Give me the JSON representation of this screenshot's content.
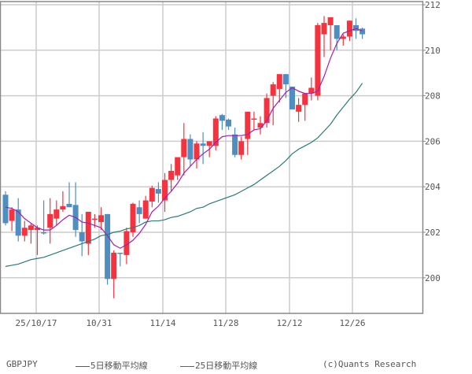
{
  "chart_data": {
    "type": "candlestick",
    "title": "GBPJPY",
    "symbol": "GBPJPY",
    "ylim": [
      198.5,
      212.2
    ],
    "yticks": [
      200,
      202,
      204,
      206,
      208,
      210,
      212
    ],
    "xtick_labels": [
      "25/10/17",
      "10/31",
      "11/14",
      "11/28",
      "12/12",
      "12/26"
    ],
    "grid": true,
    "up_color": "#f5333f",
    "down_color": "#4f8ec0",
    "ma5_color": "#a020b0",
    "ma25_color": "#2a7a78",
    "candles": [
      {
        "o": 203.65,
        "h": 203.8,
        "l": 202.3,
        "c": 202.4
      },
      {
        "o": 202.5,
        "h": 203.1,
        "l": 202.05,
        "c": 203.0
      },
      {
        "o": 203.0,
        "h": 203.5,
        "l": 201.6,
        "c": 201.85
      },
      {
        "o": 201.85,
        "h": 202.5,
        "l": 201.6,
        "c": 202.2
      },
      {
        "o": 202.1,
        "h": 202.4,
        "l": 201.5,
        "c": 202.3
      },
      {
        "o": 202.1,
        "h": 202.3,
        "l": 201.0,
        "c": 202.2
      },
      {
        "o": 202.0,
        "h": 203.4,
        "l": 201.9,
        "c": 201.95
      },
      {
        "o": 202.2,
        "h": 203.5,
        "l": 201.5,
        "c": 202.8
      },
      {
        "o": 202.6,
        "h": 203.4,
        "l": 202.3,
        "c": 203.0
      },
      {
        "o": 203.0,
        "h": 203.8,
        "l": 202.9,
        "c": 203.15
      },
      {
        "o": 203.25,
        "h": 204.2,
        "l": 203.1,
        "c": 203.1
      },
      {
        "o": 203.2,
        "h": 204.2,
        "l": 201.8,
        "c": 202.1
      },
      {
        "o": 202.0,
        "h": 202.8,
        "l": 200.95,
        "c": 201.6
      },
      {
        "o": 201.5,
        "h": 202.5,
        "l": 201.0,
        "c": 202.9
      },
      {
        "o": 202.6,
        "h": 202.8,
        "l": 202.2,
        "c": 202.6
      },
      {
        "o": 202.45,
        "h": 203.1,
        "l": 202.1,
        "c": 202.75
      },
      {
        "o": 202.8,
        "h": 202.8,
        "l": 199.7,
        "c": 199.95
      },
      {
        "o": 199.95,
        "h": 201.2,
        "l": 199.1,
        "c": 201.1
      },
      {
        "o": 201.1,
        "h": 201.1,
        "l": 200.5,
        "c": 201.05
      },
      {
        "o": 201.0,
        "h": 202.2,
        "l": 200.6,
        "c": 202.05
      },
      {
        "o": 202.0,
        "h": 203.3,
        "l": 201.8,
        "c": 203.25
      },
      {
        "o": 203.1,
        "h": 203.4,
        "l": 202.4,
        "c": 202.8
      },
      {
        "o": 202.6,
        "h": 203.6,
        "l": 202.6,
        "c": 203.4
      },
      {
        "o": 203.35,
        "h": 204.05,
        "l": 203.1,
        "c": 203.95
      },
      {
        "o": 203.9,
        "h": 204.2,
        "l": 203.3,
        "c": 203.7
      },
      {
        "o": 203.4,
        "h": 204.6,
        "l": 202.9,
        "c": 204.3
      },
      {
        "o": 204.3,
        "h": 205.0,
        "l": 203.8,
        "c": 204.7
      },
      {
        "o": 204.5,
        "h": 205.25,
        "l": 204.3,
        "c": 205.3
      },
      {
        "o": 205.3,
        "h": 206.8,
        "l": 204.5,
        "c": 206.1
      },
      {
        "o": 206.1,
        "h": 206.3,
        "l": 204.9,
        "c": 205.2
      },
      {
        "o": 205.2,
        "h": 206.0,
        "l": 204.8,
        "c": 205.9
      },
      {
        "o": 205.9,
        "h": 206.4,
        "l": 205.0,
        "c": 205.8
      },
      {
        "o": 205.8,
        "h": 206.0,
        "l": 205.3,
        "c": 206.0
      },
      {
        "o": 205.8,
        "h": 207.1,
        "l": 205.6,
        "c": 207.0
      },
      {
        "o": 207.15,
        "h": 207.2,
        "l": 206.5,
        "c": 206.9
      },
      {
        "o": 206.95,
        "h": 207.0,
        "l": 206.5,
        "c": 206.65
      },
      {
        "o": 206.3,
        "h": 206.6,
        "l": 205.3,
        "c": 205.4
      },
      {
        "o": 205.4,
        "h": 206.2,
        "l": 205.2,
        "c": 206.0
      },
      {
        "o": 206.1,
        "h": 207.1,
        "l": 205.4,
        "c": 207.3
      },
      {
        "o": 207.0,
        "h": 207.3,
        "l": 206.5,
        "c": 207.0
      },
      {
        "o": 206.6,
        "h": 207.1,
        "l": 206.3,
        "c": 206.8
      },
      {
        "o": 206.8,
        "h": 208.1,
        "l": 206.6,
        "c": 207.9
      },
      {
        "o": 208.0,
        "h": 208.6,
        "l": 206.7,
        "c": 208.5
      },
      {
        "o": 208.3,
        "h": 208.9,
        "l": 207.7,
        "c": 208.95
      },
      {
        "o": 208.95,
        "h": 208.95,
        "l": 207.9,
        "c": 208.5
      },
      {
        "o": 208.4,
        "h": 208.4,
        "l": 207.5,
        "c": 207.4
      },
      {
        "o": 207.3,
        "h": 207.9,
        "l": 206.85,
        "c": 207.6
      },
      {
        "o": 207.6,
        "h": 207.9,
        "l": 206.9,
        "c": 208.1
      },
      {
        "o": 208.1,
        "h": 208.8,
        "l": 207.8,
        "c": 208.35
      },
      {
        "o": 208.0,
        "h": 211.2,
        "l": 207.8,
        "c": 211.1
      },
      {
        "o": 210.7,
        "h": 211.5,
        "l": 209.7,
        "c": 211.2
      },
      {
        "o": 211.1,
        "h": 211.3,
        "l": 210.0,
        "c": 211.45
      },
      {
        "o": 211.1,
        "h": 211.1,
        "l": 210.0,
        "c": 210.5
      },
      {
        "o": 210.5,
        "h": 210.7,
        "l": 210.2,
        "c": 210.6
      },
      {
        "o": 210.6,
        "h": 211.3,
        "l": 210.4,
        "c": 211.3
      },
      {
        "o": 211.1,
        "h": 211.4,
        "l": 210.5,
        "c": 210.85
      },
      {
        "o": 210.95,
        "h": 211.0,
        "l": 210.5,
        "c": 210.7
      }
    ],
    "series": [
      {
        "name": "5日移動平均線",
        "values": [
          203.1,
          203.05,
          202.9,
          202.6,
          202.4,
          202.2,
          202.1,
          202.1,
          202.3,
          202.55,
          202.75,
          202.65,
          202.45,
          202.4,
          202.3,
          202.2,
          201.85,
          201.45,
          201.3,
          201.45,
          201.65,
          201.95,
          202.35,
          202.9,
          203.15,
          203.5,
          203.8,
          204.15,
          204.6,
          204.9,
          205.2,
          205.45,
          205.65,
          205.95,
          206.2,
          206.25,
          206.25,
          206.25,
          206.3,
          206.5,
          206.55,
          206.9,
          207.45,
          207.8,
          208.15,
          208.35,
          208.2,
          208.1,
          208.1,
          208.2,
          208.85,
          209.65,
          210.3,
          210.75,
          210.85,
          210.95,
          210.85
        ]
      },
      {
        "name": "25日移動平均線",
        "values": [
          200.5,
          200.55,
          200.6,
          200.7,
          200.8,
          200.85,
          200.9,
          201.0,
          201.1,
          201.2,
          201.3,
          201.4,
          201.5,
          201.6,
          201.7,
          201.85,
          201.9,
          202.0,
          202.05,
          202.15,
          202.2,
          202.3,
          202.45,
          202.5,
          202.5,
          202.55,
          202.65,
          202.7,
          202.8,
          202.9,
          203.05,
          203.1,
          203.25,
          203.35,
          203.45,
          203.55,
          203.65,
          203.8,
          203.95,
          204.1,
          204.3,
          204.5,
          204.7,
          204.9,
          205.15,
          205.45,
          205.65,
          205.8,
          205.95,
          206.15,
          206.45,
          206.75,
          207.15,
          207.5,
          207.85,
          208.15,
          208.55
        ]
      }
    ],
    "legend": [
      "GBPJPY",
      "5日移動平均線",
      "25日移動平均線"
    ]
  },
  "legend": {
    "symbol": "GBPJPY",
    "ma5": "5日移動平均線",
    "ma25": "25日移動平均線",
    "credit": "(c)Quants Research"
  }
}
